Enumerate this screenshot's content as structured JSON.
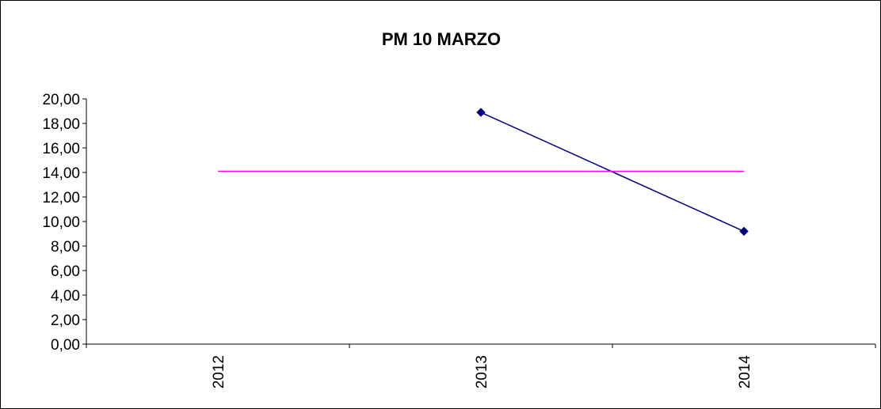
{
  "chart_data": {
    "type": "line",
    "title": "PM 10 MARZO",
    "categories": [
      "2012",
      "2013",
      "2014"
    ],
    "series": [
      {
        "name": "",
        "color": "#000080",
        "marker": "diamond",
        "values": [
          null,
          18.9,
          9.2
        ]
      },
      {
        "name": "",
        "color": "#ff00ff",
        "marker": "none",
        "values": [
          14.1,
          14.1,
          14.1
        ]
      }
    ],
    "ylim": [
      0,
      20
    ],
    "yticks": [
      "0,00",
      "2,00",
      "4,00",
      "6,00",
      "8,00",
      "10,00",
      "12,00",
      "14,00",
      "16,00",
      "18,00",
      "20,00"
    ],
    "xlabel": "",
    "ylabel": "",
    "grid": false,
    "legend": "none"
  }
}
